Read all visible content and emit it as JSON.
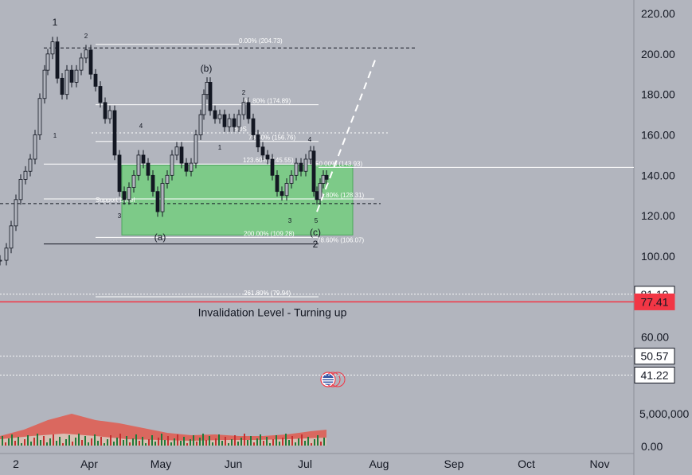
{
  "chart_data": {
    "type": "candlestick",
    "title": "",
    "x_tick_labels": [
      "2",
      "Apr",
      "May",
      "Jun",
      "Jul",
      "Aug",
      "Sep",
      "Oct",
      "Nov"
    ],
    "y_tick_labels": [
      "220.00",
      "200.00",
      "180.00",
      "160.00",
      "140.00",
      "120.00",
      "100.00",
      "60.00"
    ],
    "y_range": [
      72,
      222
    ],
    "price_badges": [
      {
        "label": "81.19",
        "value": 81.19,
        "style": "white"
      },
      {
        "label": "77.41",
        "value": 77.41,
        "style": "red"
      },
      {
        "label": "50.57",
        "value": 50.57,
        "style": "white"
      },
      {
        "label": "41.22",
        "value": 41.22,
        "style": "white"
      }
    ],
    "volume_axis_labels": [
      "5,000,000",
      "0.00"
    ],
    "horizontal_levels": [
      {
        "label": "0.00% (204.73)",
        "value": 204.73,
        "style": "solid-white"
      },
      {
        "label": "61.80% (174.89)",
        "value": 174.89,
        "style": "solid-white"
      },
      {
        "label": "BOS",
        "value": 161.0,
        "style": "dotted-white"
      },
      {
        "label": "78.60% (156.76)",
        "value": 156.76,
        "style": "solid-white"
      },
      {
        "label": "123.60% (145.55)",
        "value": 145.55,
        "style": "solid-white"
      },
      {
        "label": "50.00% (143.93)",
        "value": 143.93,
        "style": "solid-white"
      },
      {
        "label": "61.80% (128.31)",
        "value": 128.31,
        "style": "solid-white"
      },
      {
        "label": "Support Level",
        "value": 126.0,
        "style": "dashed-dark"
      },
      {
        "label": "200.00% (109.28)",
        "value": 109.28,
        "style": "solid-white"
      },
      {
        "label": "78.60% (106.07)",
        "value": 106.07,
        "style": "solid-dark"
      },
      {
        "label": "261.80% (79.94)",
        "value": 79.94,
        "style": "solid-white"
      },
      {
        "label": "",
        "value": 203.0,
        "style": "dashed-dark"
      }
    ],
    "support_zone": {
      "from": 110.5,
      "to": 145.0,
      "color": "#6fd07a"
    },
    "invalidation": {
      "label": "Invalidation Level - Turning up",
      "value": 77.41,
      "color": "#f23645"
    },
    "wave_labels": [
      "1",
      "2",
      "1",
      "3",
      "4",
      "5",
      "(a)",
      "(b)",
      "1",
      "2",
      "3",
      "4",
      "5",
      "(c)",
      "2",
      "3",
      "5"
    ],
    "projection": {
      "from": 122,
      "to": 198,
      "style": "dashed-white"
    }
  },
  "colors": {
    "background": "#b2b5be",
    "candle_up": "#131722",
    "candle_down": "#131722",
    "zone_fill": "#6fd07a",
    "invalidation": "#f23645",
    "volume_up": "#1f7a3a",
    "volume_down": "#c43030",
    "volume_ma": "#e05a4f"
  },
  "icons": {
    "event_flag": "us-flag-icon"
  }
}
